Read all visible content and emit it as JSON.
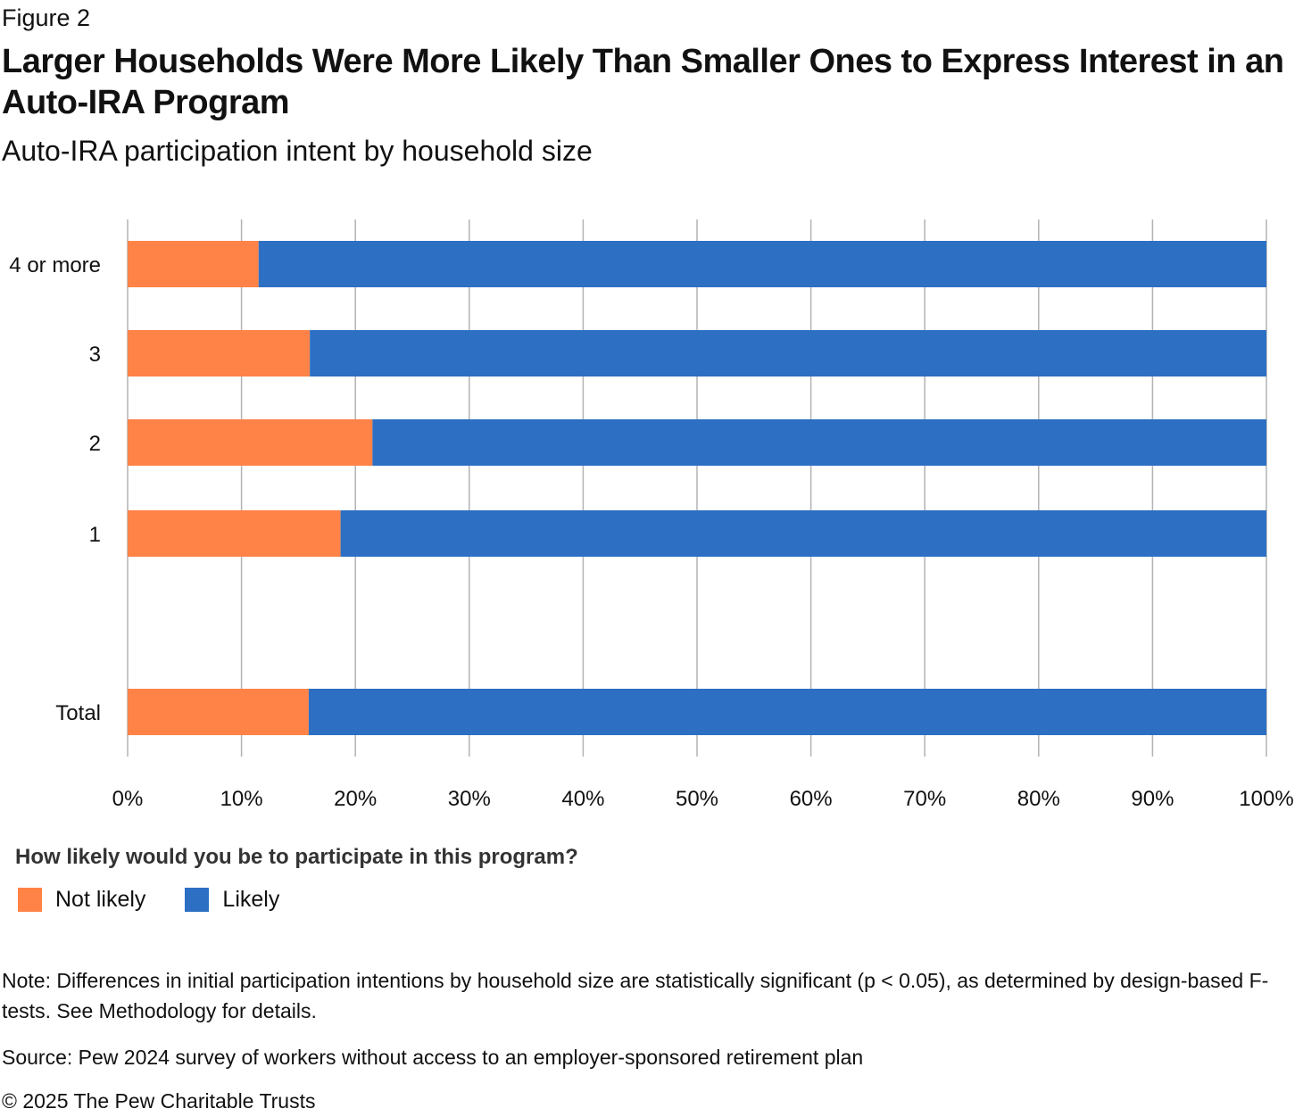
{
  "figure_label": "Figure 2",
  "chart_data": {
    "type": "bar",
    "orientation": "horizontal",
    "stacked": true,
    "title": "Larger Households Were More Likely Than Smaller Ones to Express Interest in an Auto-IRA Program",
    "subtitle": "Auto-IRA participation intent by household size",
    "categories": [
      "4 or more",
      "3",
      "2",
      "1",
      "Total"
    ],
    "series": [
      {
        "name": "Not likely",
        "color": "#ff8246",
        "values": [
          11.5,
          16,
          21.5,
          18.7,
          15.9
        ]
      },
      {
        "name": "Likely",
        "color": "#2c6fc3",
        "values": [
          88.5,
          84,
          78.5,
          81.3,
          84.1
        ]
      }
    ],
    "xlim": [
      0,
      100
    ],
    "xticks": [
      "0%",
      "10%",
      "20%",
      "30%",
      "40%",
      "50%",
      "60%",
      "70%",
      "80%",
      "90%",
      "100%"
    ],
    "xlabel": "",
    "ylabel": "",
    "grid": "vertical",
    "legend_title": "How likely would you be to participate in this program?",
    "legend_position": "bottom-left"
  },
  "note": "Note: Differences in initial participation intentions by household size are statistically significant (p < 0.05), as determined by design-based F-tests. See Methodology for details.",
  "source": "Source: Pew 2024 survey of workers without access to an employer-sponsored retirement plan",
  "copyright": "© 2025 The Pew Charitable Trusts"
}
